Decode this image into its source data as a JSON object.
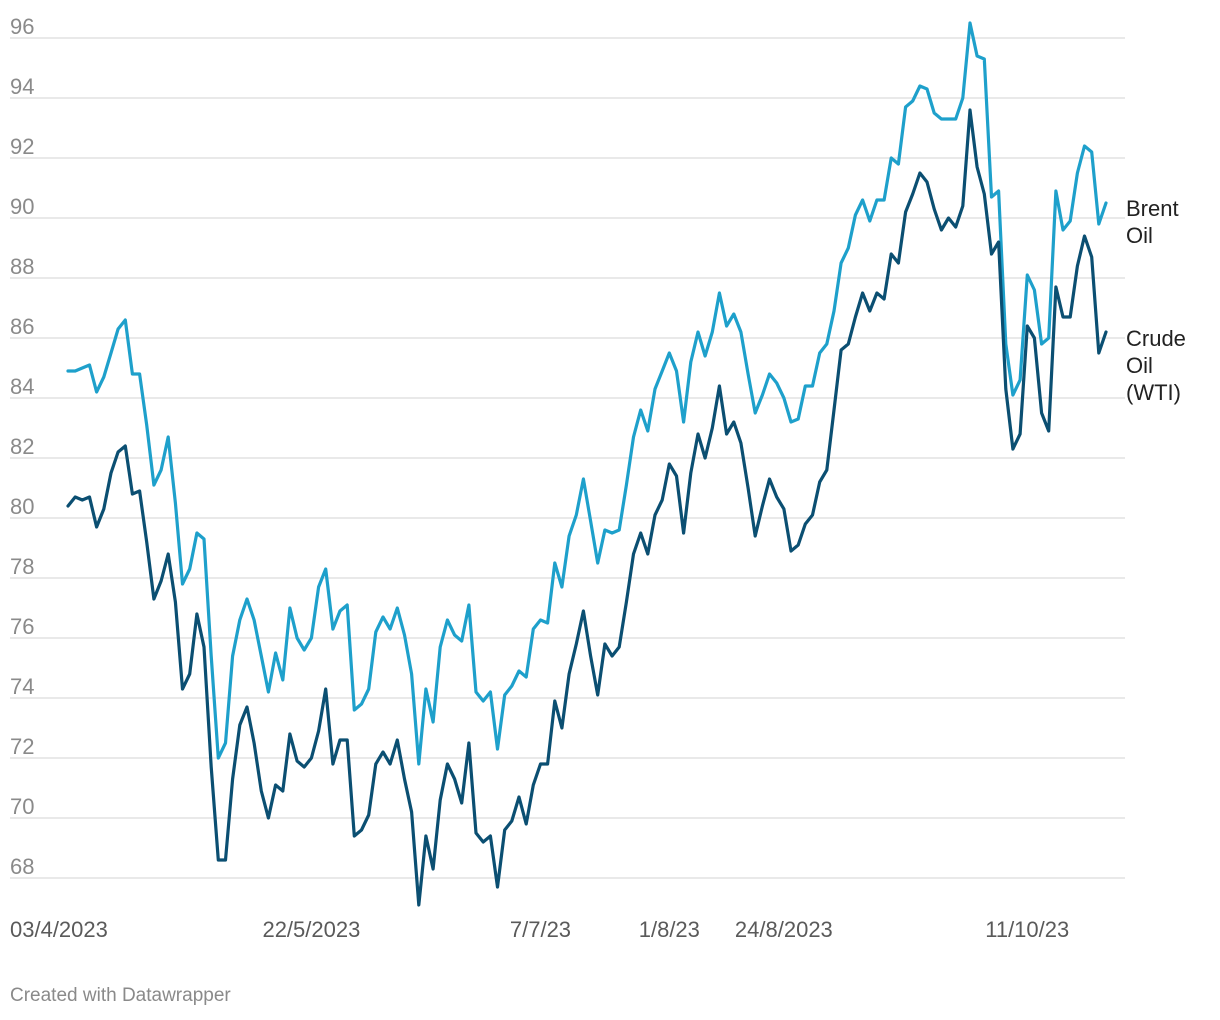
{
  "footer": {
    "credit": "Created with Datawrapper"
  },
  "chart_data": {
    "type": "line",
    "title": "",
    "xlabel": "",
    "ylabel": "",
    "ylim": [
      67.2,
      96.5
    ],
    "yticks": [
      68,
      70,
      72,
      74,
      76,
      78,
      80,
      82,
      84,
      86,
      88,
      90,
      92,
      94,
      96
    ],
    "grid": true,
    "legend": "direct labels at line ends (right)",
    "x_tick_labels": [
      {
        "label": "03/4/2023",
        "index": 0
      },
      {
        "label": "22/5/2023",
        "index": 34
      },
      {
        "label": "7/7/23",
        "index": 66
      },
      {
        "label": "1/8/23",
        "index": 84
      },
      {
        "label": "24/8/2023",
        "index": 100
      },
      {
        "label": "11/10/23",
        "index": 134
      }
    ],
    "series": [
      {
        "name": "Brent Oil",
        "color": "#1ea0cb",
        "values": [
          84.9,
          84.9,
          85.0,
          85.1,
          84.2,
          84.7,
          85.5,
          86.3,
          86.6,
          84.8,
          84.8,
          83.1,
          81.1,
          81.6,
          82.7,
          80.5,
          77.8,
          78.3,
          79.5,
          79.3,
          75.4,
          72.0,
          72.5,
          75.4,
          76.6,
          77.3,
          76.6,
          75.4,
          74.2,
          75.5,
          74.6,
          77.0,
          76.0,
          75.6,
          76.0,
          77.7,
          78.3,
          76.3,
          76.9,
          77.1,
          73.6,
          73.8,
          74.3,
          76.2,
          76.7,
          76.3,
          77.0,
          76.1,
          74.8,
          71.8,
          74.3,
          73.2,
          75.7,
          76.6,
          76.1,
          75.9,
          77.1,
          74.2,
          73.9,
          74.2,
          72.3,
          74.1,
          74.4,
          74.9,
          74.7,
          76.3,
          76.6,
          76.5,
          78.5,
          77.7,
          79.4,
          80.1,
          81.3,
          79.9,
          78.5,
          79.6,
          79.5,
          79.6,
          81.1,
          82.7,
          83.6,
          82.9,
          84.3,
          84.9,
          85.5,
          84.9,
          83.2,
          85.2,
          86.2,
          85.4,
          86.2,
          87.5,
          86.4,
          86.8,
          86.2,
          84.8,
          83.5,
          84.1,
          84.8,
          84.5,
          84.0,
          83.2,
          83.3,
          84.4,
          84.4,
          85.5,
          85.8,
          86.9,
          88.5,
          89.0,
          90.1,
          90.6,
          89.9,
          90.6,
          90.6,
          92.0,
          91.8,
          93.7,
          93.9,
          94.4,
          94.3,
          93.5,
          93.3,
          93.3,
          93.3,
          94.0,
          96.5,
          95.4,
          95.3,
          90.7,
          90.9,
          85.8,
          84.1,
          84.6,
          88.1,
          87.6,
          85.8,
          86.0,
          90.9,
          89.6,
          89.9,
          91.5,
          92.4,
          92.2,
          89.8,
          90.5
        ]
      },
      {
        "name": "Crude Oil (WTI)",
        "color": "#0b4f72",
        "values": [
          80.4,
          80.7,
          80.6,
          80.7,
          79.7,
          80.3,
          81.5,
          82.2,
          82.4,
          80.8,
          80.9,
          79.2,
          77.3,
          77.9,
          78.8,
          77.2,
          74.3,
          74.8,
          76.8,
          75.7,
          71.7,
          68.6,
          68.6,
          71.3,
          73.1,
          73.7,
          72.5,
          70.9,
          70.0,
          71.1,
          70.9,
          72.8,
          71.9,
          71.7,
          72.0,
          72.9,
          74.3,
          71.8,
          72.6,
          72.6,
          69.4,
          69.6,
          70.1,
          71.8,
          72.2,
          71.8,
          72.6,
          71.3,
          70.2,
          67.1,
          69.4,
          68.3,
          70.6,
          71.8,
          71.3,
          70.5,
          72.5,
          69.5,
          69.2,
          69.4,
          67.7,
          69.6,
          69.9,
          70.7,
          69.8,
          71.1,
          71.8,
          71.8,
          73.9,
          73.0,
          74.8,
          75.8,
          76.9,
          75.4,
          74.1,
          75.8,
          75.4,
          75.7,
          77.2,
          78.8,
          79.5,
          78.8,
          80.1,
          80.6,
          81.8,
          81.4,
          79.5,
          81.5,
          82.8,
          82.0,
          83.0,
          84.4,
          82.8,
          83.2,
          82.5,
          81.0,
          79.4,
          80.4,
          81.3,
          80.7,
          80.3,
          78.9,
          79.1,
          79.8,
          80.1,
          81.2,
          81.6,
          83.6,
          85.6,
          85.8,
          86.7,
          87.5,
          86.9,
          87.5,
          87.3,
          88.8,
          88.5,
          90.2,
          90.8,
          91.5,
          91.2,
          90.3,
          89.6,
          90.0,
          89.7,
          90.4,
          93.6,
          91.7,
          90.8,
          88.8,
          89.2,
          84.3,
          82.3,
          82.8,
          86.4,
          86.0,
          83.5,
          82.9,
          87.7,
          86.7,
          86.7,
          88.4,
          89.4,
          88.7,
          85.5,
          86.2
        ]
      }
    ]
  }
}
